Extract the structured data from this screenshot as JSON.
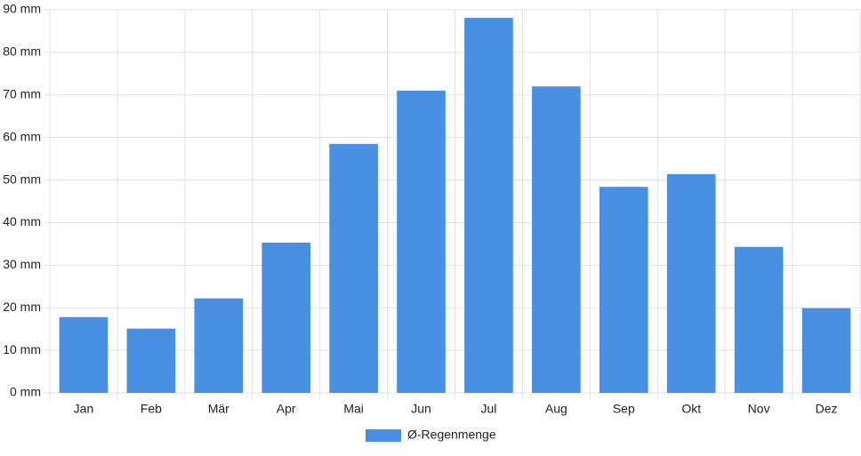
{
  "chart_data": {
    "type": "bar",
    "categories": [
      "Jan",
      "Feb",
      "Mär",
      "Apr",
      "Mai",
      "Jun",
      "Jul",
      "Aug",
      "Sep",
      "Okt",
      "Nov",
      "Dez"
    ],
    "series": [
      {
        "name": "Ø-Regenmenge",
        "color": "#4a90e2",
        "values": [
          17.8,
          15.1,
          22.2,
          35.3,
          58.5,
          71,
          88.1,
          72,
          48.4,
          51.4,
          34.3,
          19.9
        ]
      }
    ],
    "ylim": [
      0,
      90
    ],
    "yticks": [
      {
        "value": 0,
        "label": "0 mm"
      },
      {
        "value": 10,
        "label": "10 mm"
      },
      {
        "value": 20,
        "label": "20 mm"
      },
      {
        "value": 30,
        "label": "30 mm"
      },
      {
        "value": 40,
        "label": "40 mm"
      },
      {
        "value": 50,
        "label": "50 mm"
      },
      {
        "value": 60,
        "label": "60 mm"
      },
      {
        "value": 70,
        "label": "70 mm"
      },
      {
        "value": 80,
        "label": "80 mm"
      },
      {
        "value": 90,
        "label": "90 mm"
      }
    ],
    "grid": true,
    "legend": "bottom"
  }
}
